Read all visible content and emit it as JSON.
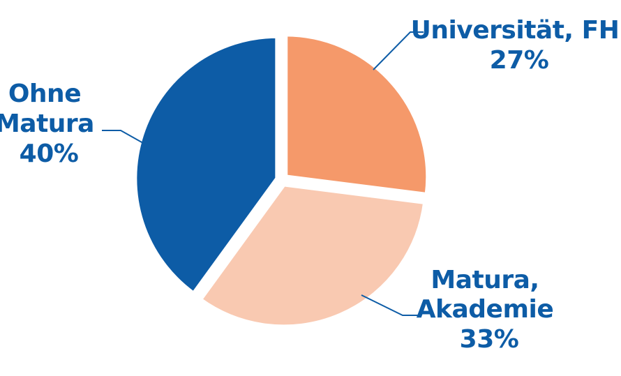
{
  "chart_data": {
    "type": "pie",
    "slices": [
      {
        "lines": [
          "Universität, FH"
        ],
        "value": 27,
        "value_label": "27%",
        "color": "#F5996A"
      },
      {
        "lines": [
          "Matura,",
          "Akademie"
        ],
        "value": 33,
        "value_label": "33%",
        "color": "#F9C9B1"
      },
      {
        "lines": [
          "Ohne",
          "Matura"
        ],
        "value": 40,
        "value_label": "40%",
        "color": "#0D5CA6"
      }
    ],
    "start_angle_deg": 0,
    "direction": "clockwise",
    "exploded": true,
    "label_color": "#0D5CA6",
    "leader_line_color": "#0D5CA6",
    "legend": "none"
  }
}
